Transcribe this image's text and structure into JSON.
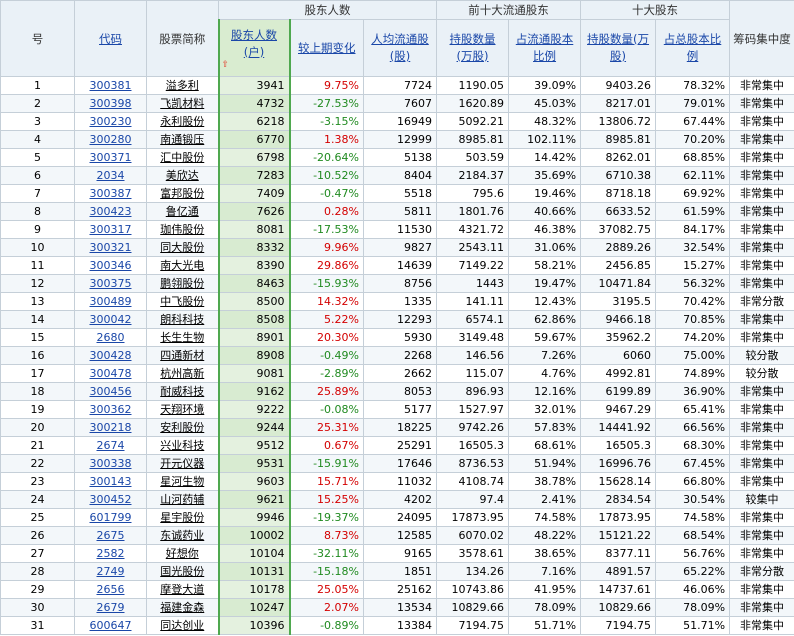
{
  "headers": {
    "index": "号",
    "code": "代码",
    "name": "股票简称",
    "holders": "股东人数(户)",
    "group_holders": "股东人数",
    "change": "较上期变化",
    "per_capita": "人均流通股(股)",
    "group_top10_float": "前十大流通股东",
    "float_holdings": "持股数量(万股)",
    "float_pct": "占流通股本比例",
    "group_top10": "十大股东",
    "top_holdings": "持股数量(万股)",
    "top_pct": "占总股本比例",
    "concentration": "筹码集中度"
  },
  "sort_indicator": "⇧",
  "rows": [
    {
      "idx": "1",
      "code": "300381",
      "name": "溢多利",
      "holders": "3941",
      "change": "9.75%",
      "dir": "up",
      "per": "7724",
      "fh": "1190.05",
      "fp": "39.09%",
      "th": "9403.26",
      "tp": "78.32%",
      "conc": "非常集中"
    },
    {
      "idx": "2",
      "code": "300398",
      "name": "飞凯材料",
      "holders": "4732",
      "change": "-27.53%",
      "dir": "dn",
      "per": "7607",
      "fh": "1620.89",
      "fp": "45.03%",
      "th": "8217.01",
      "tp": "79.01%",
      "conc": "非常集中"
    },
    {
      "idx": "3",
      "code": "300230",
      "name": "永利股份",
      "holders": "6218",
      "change": "-3.15%",
      "dir": "dn",
      "per": "16949",
      "fh": "5092.21",
      "fp": "48.32%",
      "th": "13806.72",
      "tp": "67.44%",
      "conc": "非常集中"
    },
    {
      "idx": "4",
      "code": "300280",
      "name": "南通锻压",
      "holders": "6770",
      "change": "1.38%",
      "dir": "up",
      "per": "12999",
      "fh": "8985.81",
      "fp": "102.11%",
      "th": "8985.81",
      "tp": "70.20%",
      "conc": "非常集中"
    },
    {
      "idx": "5",
      "code": "300371",
      "name": "汇中股份",
      "holders": "6798",
      "change": "-20.64%",
      "dir": "dn",
      "per": "5138",
      "fh": "503.59",
      "fp": "14.42%",
      "th": "8262.01",
      "tp": "68.85%",
      "conc": "非常集中"
    },
    {
      "idx": "6",
      "code": "2034",
      "name": "美欣达",
      "holders": "7283",
      "change": "-10.52%",
      "dir": "dn",
      "per": "8404",
      "fh": "2184.37",
      "fp": "35.69%",
      "th": "6710.38",
      "tp": "62.11%",
      "conc": "非常集中"
    },
    {
      "idx": "7",
      "code": "300387",
      "name": "富邦股份",
      "holders": "7409",
      "change": "-0.47%",
      "dir": "dn",
      "per": "5518",
      "fh": "795.6",
      "fp": "19.46%",
      "th": "8718.18",
      "tp": "69.92%",
      "conc": "非常集中"
    },
    {
      "idx": "8",
      "code": "300423",
      "name": "鲁亿通",
      "holders": "7626",
      "change": "0.28%",
      "dir": "up",
      "per": "5811",
      "fh": "1801.76",
      "fp": "40.66%",
      "th": "6633.52",
      "tp": "61.59%",
      "conc": "非常集中"
    },
    {
      "idx": "9",
      "code": "300317",
      "name": "珈伟股份",
      "holders": "8081",
      "change": "-17.53%",
      "dir": "dn",
      "per": "11530",
      "fh": "4321.72",
      "fp": "46.38%",
      "th": "37082.75",
      "tp": "84.17%",
      "conc": "非常集中"
    },
    {
      "idx": "10",
      "code": "300321",
      "name": "同大股份",
      "holders": "8332",
      "change": "9.96%",
      "dir": "up",
      "per": "9827",
      "fh": "2543.11",
      "fp": "31.06%",
      "th": "2889.26",
      "tp": "32.54%",
      "conc": "非常集中"
    },
    {
      "idx": "11",
      "code": "300346",
      "name": "南大光电",
      "holders": "8390",
      "change": "29.86%",
      "dir": "up",
      "per": "14639",
      "fh": "7149.22",
      "fp": "58.21%",
      "th": "2456.85",
      "tp": "15.27%",
      "conc": "非常集中"
    },
    {
      "idx": "12",
      "code": "300375",
      "name": "鹏翎股份",
      "holders": "8463",
      "change": "-15.93%",
      "dir": "dn",
      "per": "8756",
      "fh": "1443",
      "fp": "19.47%",
      "th": "10471.84",
      "tp": "56.32%",
      "conc": "非常集中"
    },
    {
      "idx": "13",
      "code": "300489",
      "name": "中飞股份",
      "holders": "8500",
      "change": "14.32%",
      "dir": "up",
      "per": "1335",
      "fh": "141.11",
      "fp": "12.43%",
      "th": "3195.5",
      "tp": "70.42%",
      "conc": "非常分散"
    },
    {
      "idx": "14",
      "code": "300042",
      "name": "朗科科技",
      "holders": "8508",
      "change": "5.22%",
      "dir": "up",
      "per": "12293",
      "fh": "6574.1",
      "fp": "62.86%",
      "th": "9466.18",
      "tp": "70.85%",
      "conc": "非常集中"
    },
    {
      "idx": "15",
      "code": "2680",
      "name": "长生生物",
      "holders": "8901",
      "change": "20.30%",
      "dir": "up",
      "per": "5930",
      "fh": "3149.48",
      "fp": "59.67%",
      "th": "35962.2",
      "tp": "74.20%",
      "conc": "非常集中"
    },
    {
      "idx": "16",
      "code": "300428",
      "name": "四通新材",
      "holders": "8908",
      "change": "-0.49%",
      "dir": "dn",
      "per": "2268",
      "fh": "146.56",
      "fp": "7.26%",
      "th": "6060",
      "tp": "75.00%",
      "conc": "较分散"
    },
    {
      "idx": "17",
      "code": "300478",
      "name": "杭州高新",
      "holders": "9081",
      "change": "-2.89%",
      "dir": "dn",
      "per": "2662",
      "fh": "115.07",
      "fp": "4.76%",
      "th": "4992.81",
      "tp": "74.89%",
      "conc": "较分散"
    },
    {
      "idx": "18",
      "code": "300456",
      "name": "耐威科技",
      "holders": "9162",
      "change": "25.89%",
      "dir": "up",
      "per": "8053",
      "fh": "896.93",
      "fp": "12.16%",
      "th": "6199.89",
      "tp": "36.90%",
      "conc": "非常集中"
    },
    {
      "idx": "19",
      "code": "300362",
      "name": "天翔环境",
      "holders": "9222",
      "change": "-0.08%",
      "dir": "dn",
      "per": "5177",
      "fh": "1527.97",
      "fp": "32.01%",
      "th": "9467.29",
      "tp": "65.41%",
      "conc": "非常集中"
    },
    {
      "idx": "20",
      "code": "300218",
      "name": "安利股份",
      "holders": "9244",
      "change": "25.31%",
      "dir": "up",
      "per": "18225",
      "fh": "9742.26",
      "fp": "57.83%",
      "th": "14441.92",
      "tp": "66.56%",
      "conc": "非常集中"
    },
    {
      "idx": "21",
      "code": "2674",
      "name": "兴业科技",
      "holders": "9512",
      "change": "0.67%",
      "dir": "up",
      "per": "25291",
      "fh": "16505.3",
      "fp": "68.61%",
      "th": "16505.3",
      "tp": "68.30%",
      "conc": "非常集中"
    },
    {
      "idx": "22",
      "code": "300338",
      "name": "开元仪器",
      "holders": "9531",
      "change": "-15.91%",
      "dir": "dn",
      "per": "17646",
      "fh": "8736.53",
      "fp": "51.94%",
      "th": "16996.76",
      "tp": "67.45%",
      "conc": "非常集中"
    },
    {
      "idx": "23",
      "code": "300143",
      "name": "星河生物",
      "holders": "9603",
      "change": "15.71%",
      "dir": "up",
      "per": "11032",
      "fh": "4108.74",
      "fp": "38.78%",
      "th": "15628.14",
      "tp": "66.80%",
      "conc": "非常集中"
    },
    {
      "idx": "24",
      "code": "300452",
      "name": "山河药辅",
      "holders": "9621",
      "change": "15.25%",
      "dir": "up",
      "per": "4202",
      "fh": "97.4",
      "fp": "2.41%",
      "th": "2834.54",
      "tp": "30.54%",
      "conc": "较集中"
    },
    {
      "idx": "25",
      "code": "601799",
      "name": "星宇股份",
      "holders": "9946",
      "change": "-19.37%",
      "dir": "dn",
      "per": "24095",
      "fh": "17873.95",
      "fp": "74.58%",
      "th": "17873.95",
      "tp": "74.58%",
      "conc": "非常集中"
    },
    {
      "idx": "26",
      "code": "2675",
      "name": "东诚药业",
      "holders": "10002",
      "change": "8.73%",
      "dir": "up",
      "per": "12585",
      "fh": "6070.02",
      "fp": "48.22%",
      "th": "15121.22",
      "tp": "68.54%",
      "conc": "非常集中"
    },
    {
      "idx": "27",
      "code": "2582",
      "name": "好想你",
      "holders": "10104",
      "change": "-32.11%",
      "dir": "dn",
      "per": "9165",
      "fh": "3578.61",
      "fp": "38.65%",
      "th": "8377.11",
      "tp": "56.76%",
      "conc": "非常集中"
    },
    {
      "idx": "28",
      "code": "2749",
      "name": "国光股份",
      "holders": "10131",
      "change": "-15.18%",
      "dir": "dn",
      "per": "1851",
      "fh": "134.26",
      "fp": "7.16%",
      "th": "4891.57",
      "tp": "65.22%",
      "conc": "非常分散"
    },
    {
      "idx": "29",
      "code": "2656",
      "name": "摩登大道",
      "holders": "10178",
      "change": "25.05%",
      "dir": "up",
      "per": "25162",
      "fh": "10743.86",
      "fp": "41.95%",
      "th": "14737.61",
      "tp": "46.06%",
      "conc": "非常集中"
    },
    {
      "idx": "30",
      "code": "2679",
      "name": "福建金森",
      "holders": "10247",
      "change": "2.07%",
      "dir": "up",
      "per": "13534",
      "fh": "10829.66",
      "fp": "78.09%",
      "th": "10829.66",
      "tp": "78.09%",
      "conc": "非常集中"
    },
    {
      "idx": "31",
      "code": "600647",
      "name": "同达创业",
      "holders": "10396",
      "change": "-0.89%",
      "dir": "dn",
      "per": "13384",
      "fh": "7194.75",
      "fp": "51.71%",
      "th": "7194.75",
      "tp": "51.71%",
      "conc": "非常集中"
    }
  ]
}
